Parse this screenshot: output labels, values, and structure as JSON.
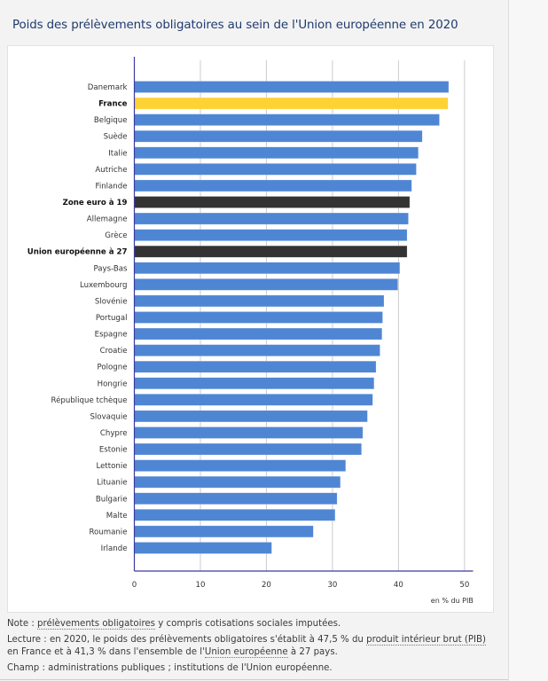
{
  "title": "Poids des prélèvements obligatoires au sein de l'Union européenne en 2020",
  "colors": {
    "bar_default": "#4f86d4",
    "bar_france": "#fdd235",
    "bar_aggregate": "#333333",
    "axis": "#3b3b9e",
    "grid": "#cccccc",
    "title": "#1f3a6e"
  },
  "chart_data": {
    "type": "bar",
    "orientation": "horizontal",
    "title": "Poids des prélèvements obligatoires au sein de l'Union européenne en 2020",
    "xlabel": "en % du PIB",
    "ylabel": "",
    "xlim": [
      0,
      51.3
    ],
    "xticks": [
      0,
      10,
      20,
      30,
      40,
      50
    ],
    "grid": true,
    "legend": "none",
    "categories": [
      "Danemark",
      "France",
      "Belgique",
      "Suède",
      "Italie",
      "Autriche",
      "Finlande",
      "Zone euro à 19",
      "Allemagne",
      "Grèce",
      "Union européenne à 27",
      "Pays-Bas",
      "Luxembourg",
      "Slovénie",
      "Portugal",
      "Espagne",
      "Croatie",
      "Pologne",
      "Hongrie",
      "République tchèque",
      "Slovaquie",
      "Chypre",
      "Estonie",
      "Lettonie",
      "Lituanie",
      "Bulgarie",
      "Malte",
      "Roumanie",
      "Irlande"
    ],
    "values": [
      47.6,
      47.5,
      46.2,
      43.6,
      43.0,
      42.7,
      42.0,
      41.7,
      41.5,
      41.3,
      41.3,
      40.2,
      39.9,
      37.8,
      37.6,
      37.5,
      37.2,
      36.6,
      36.3,
      36.1,
      35.3,
      34.6,
      34.4,
      32.0,
      31.2,
      30.7,
      30.4,
      27.1,
      20.8
    ],
    "highlight": {
      "France": "france",
      "Zone euro à 19": "aggregate",
      "Union européenne à 27": "aggregate"
    }
  },
  "notes": {
    "note_prefix": "Note : ",
    "note_link": "prélèvements obligatoires",
    "note_suffix": " y compris cotisations sociales imputées.",
    "lecture_prefix": "Lecture : en 2020, le poids des prélèvements obligatoires s'établit à 47,5 % du ",
    "lecture_link1": "produit intérieur brut (PIB)",
    "lecture_mid": " en France et à 41,3 % dans l'ensemble de l'",
    "lecture_link2": "Union européenne",
    "lecture_suffix": " à 27 pays.",
    "champ": "Champ : administrations publiques ; institutions de l'Union européenne."
  }
}
